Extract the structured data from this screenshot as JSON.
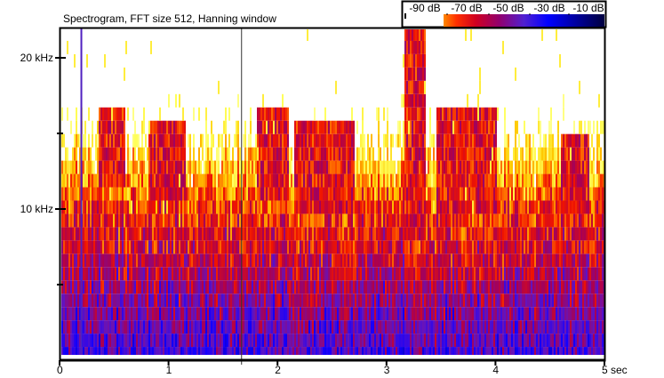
{
  "chart_data": {
    "type": "heatmap",
    "title": "Spectrogram, FFT size 512, Hanning window",
    "xlabel": "sec",
    "x_ticks": [
      "0",
      "1",
      "2",
      "3",
      "4",
      "5 sec"
    ],
    "x_tick_values": [
      0,
      1,
      2,
      3,
      4,
      5
    ],
    "xlim": [
      0,
      5
    ],
    "y_ticks": [
      "20 kHz",
      "10 kHz"
    ],
    "y_tick_values_khz": [
      20,
      10
    ],
    "y_minor_ticks_khz": [
      15,
      5
    ],
    "ylim_khz": [
      0,
      22
    ],
    "colorbar": {
      "labels": [
        "-90 dB",
        "-70 dB",
        "-50 dB",
        "-30 dB",
        "-10 dB"
      ],
      "range_db": [
        -90,
        0
      ],
      "colors": [
        "#ffffff",
        "#ffff60",
        "#ff8000",
        "#ff0000",
        "#a00060",
        "#6020c0",
        "#0000ff",
        "#000050"
      ]
    },
    "markers": {
      "blue_line_sec": 0.2,
      "cursor_sec": 1.67
    },
    "bird_call_events": [
      {
        "t": [
          0.35,
          0.6
        ],
        "khz": [
          11.5,
          16.5
        ]
      },
      {
        "t": [
          0.8,
          1.15
        ],
        "khz": [
          11,
          15.5
        ]
      },
      {
        "t": [
          1.8,
          2.1
        ],
        "khz": [
          11,
          16.5
        ]
      },
      {
        "t": [
          2.15,
          2.7
        ],
        "khz": [
          10,
          15.5
        ]
      },
      {
        "t": [
          3.15,
          3.35
        ],
        "khz": [
          8,
          22
        ]
      },
      {
        "t": [
          3.45,
          4.0
        ],
        "khz": [
          10,
          16.5
        ]
      },
      {
        "t": [
          4.6,
          4.85
        ],
        "khz": [
          10,
          15
        ]
      }
    ]
  }
}
